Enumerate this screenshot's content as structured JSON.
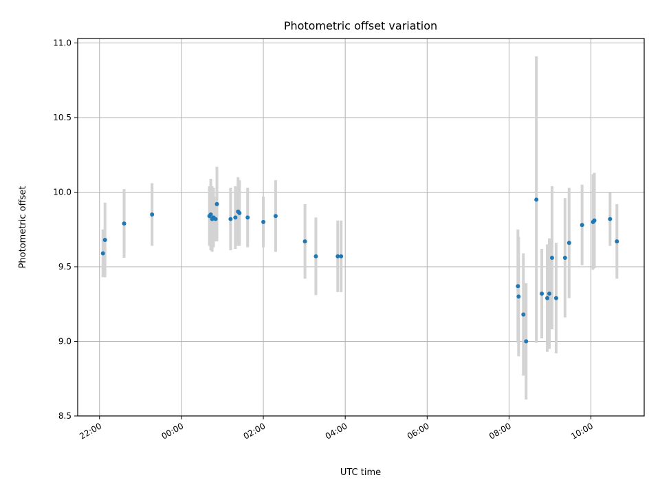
{
  "chart_data": {
    "type": "scatter",
    "title": "Photometric offset variation",
    "xlabel": "UTC time",
    "ylabel": "Photometric offset",
    "x_axis_kind": "time",
    "x_range": [
      "21:28",
      "11:18"
    ],
    "x_ticks": [
      "22:00",
      "00:00",
      "02:00",
      "04:00",
      "06:00",
      "08:00",
      "10:00"
    ],
    "ylim": [
      8.5,
      11.03
    ],
    "y_ticks": [
      "8.5",
      "9.0",
      "9.5",
      "10.0",
      "10.5",
      "11.0"
    ],
    "grid": true,
    "marker_color": "#1f77b4",
    "errorbar_color": "#d3d3d3",
    "points": [
      {
        "x": "22:05",
        "y": 9.59,
        "err": 0.16
      },
      {
        "x": "22:08",
        "y": 9.68,
        "err": 0.25
      },
      {
        "x": "22:36",
        "y": 9.79,
        "err": 0.23
      },
      {
        "x": "23:17",
        "y": 9.85,
        "err": 0.21
      },
      {
        "x": "00:41",
        "y": 9.84,
        "err": 0.2
      },
      {
        "x": "00:43",
        "y": 9.85,
        "err": 0.24
      },
      {
        "x": "00:45",
        "y": 9.82,
        "err": 0.22
      },
      {
        "x": "00:47",
        "y": 9.83,
        "err": 0.2
      },
      {
        "x": "00:50",
        "y": 9.82,
        "err": 0.15
      },
      {
        "x": "00:52",
        "y": 9.92,
        "err": 0.25
      },
      {
        "x": "01:12",
        "y": 9.82,
        "err": 0.21
      },
      {
        "x": "01:19",
        "y": 9.83,
        "err": 0.21
      },
      {
        "x": "01:23",
        "y": 9.87,
        "err": 0.23
      },
      {
        "x": "01:25",
        "y": 9.86,
        "err": 0.22
      },
      {
        "x": "01:37",
        "y": 9.83,
        "err": 0.2
      },
      {
        "x": "02:00",
        "y": 9.8,
        "err": 0.17
      },
      {
        "x": "02:18",
        "y": 9.84,
        "err": 0.24
      },
      {
        "x": "03:01",
        "y": 9.67,
        "err": 0.25
      },
      {
        "x": "03:17",
        "y": 9.57,
        "err": 0.26
      },
      {
        "x": "03:49",
        "y": 9.57,
        "err": 0.24
      },
      {
        "x": "03:54",
        "y": 9.57,
        "err": 0.24
      },
      {
        "x": "08:13",
        "y": 9.37,
        "err": 0.38
      },
      {
        "x": "08:14",
        "y": 9.3,
        "err": 0.4
      },
      {
        "x": "08:21",
        "y": 9.18,
        "err": 0.41
      },
      {
        "x": "08:25",
        "y": 9.0,
        "err": 0.39
      },
      {
        "x": "08:40",
        "y": 9.95,
        "err": 0.96
      },
      {
        "x": "08:48",
        "y": 9.32,
        "err": 0.3
      },
      {
        "x": "08:56",
        "y": 9.29,
        "err": 0.36
      },
      {
        "x": "08:59",
        "y": 9.32,
        "err": 0.37
      },
      {
        "x": "09:03",
        "y": 9.56,
        "err": 0.48
      },
      {
        "x": "09:09",
        "y": 9.29,
        "err": 0.37
      },
      {
        "x": "09:22",
        "y": 9.56,
        "err": 0.4
      },
      {
        "x": "09:28",
        "y": 9.66,
        "err": 0.37
      },
      {
        "x": "09:47",
        "y": 9.78,
        "err": 0.27
      },
      {
        "x": "10:03",
        "y": 9.8,
        "err": 0.32
      },
      {
        "x": "10:05",
        "y": 9.81,
        "err": 0.32
      },
      {
        "x": "10:28",
        "y": 9.82,
        "err": 0.18
      },
      {
        "x": "10:38",
        "y": 9.67,
        "err": 0.25
      }
    ]
  }
}
